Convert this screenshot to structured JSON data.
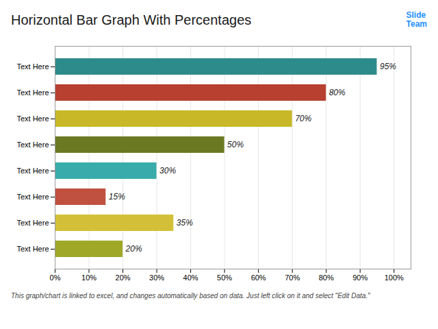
{
  "chart_data": {
    "type": "bar",
    "orientation": "horizontal",
    "title": "Horizontal Bar Graph With Percentages",
    "categories": [
      "Text Here",
      "Text Here",
      "Text Here",
      "Text Here",
      "Text Here",
      "Text Here",
      "Text Here",
      "Text Here"
    ],
    "values": [
      95,
      80,
      70,
      50,
      30,
      15,
      35,
      20
    ],
    "value_labels": [
      "95%",
      "80%",
      "70%",
      "50%",
      "30%",
      "15%",
      "35%",
      "20%"
    ],
    "data_labels": true,
    "colors": [
      "#2E8B8B",
      "#B84030",
      "#C8B828",
      "#6B7A22",
      "#3AABAB",
      "#C05040",
      "#D4C038",
      "#A0A828"
    ],
    "xlim": [
      0,
      105
    ],
    "xticks": [
      {
        "value": 0,
        "label": "0%"
      },
      {
        "value": 10,
        "label": "10%"
      },
      {
        "value": 20,
        "label": "20%"
      },
      {
        "value": 30,
        "label": "30%"
      },
      {
        "value": 40,
        "label": "40%"
      },
      {
        "value": 50,
        "label": "50%"
      },
      {
        "value": 60,
        "label": "60%"
      },
      {
        "value": 70,
        "label": "70%"
      },
      {
        "value": 80,
        "label": "80%"
      },
      {
        "value": 90,
        "label": "90%"
      },
      {
        "value": 100,
        "label": "100%"
      }
    ],
    "grid": true,
    "annotations": [
      "This graph/chart is linked to excel, and changes automatically based on data. Just left click on it and select \"Edit Data.\"",
      "Slide\nTeam"
    ]
  }
}
